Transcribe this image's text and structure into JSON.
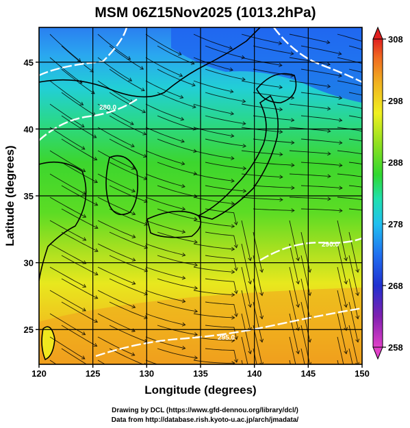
{
  "title": "MSM 06Z15Nov2025 (1013.2hPa)",
  "x_axis": {
    "label": "Longitude (degrees)",
    "ticks": [
      120,
      125,
      130,
      135,
      140,
      145,
      150
    ],
    "range": [
      120,
      150
    ]
  },
  "y_axis": {
    "label": "Latitude  (degrees)",
    "ticks": [
      25,
      30,
      35,
      40,
      45
    ],
    "range": [
      22.4,
      47.6
    ]
  },
  "colorbar": {
    "ticks": [
      258,
      268,
      278,
      288,
      298,
      308
    ],
    "range": [
      258,
      308
    ],
    "colors": [
      "#e040c8",
      "#8020b0",
      "#2030d0",
      "#2090f0",
      "#20d8e0",
      "#20e080",
      "#30d020",
      "#a0e020",
      "#f0f020",
      "#f0b020",
      "#f07020",
      "#e02020"
    ]
  },
  "contours": [
    {
      "label": "280.0"
    },
    {
      "label": "290.0"
    },
    {
      "label": "295.0"
    }
  ],
  "credits": {
    "line1": "Drawing by DCL (https://www.gfd-dennou.org/library/dcl/)",
    "line2": "Data from http://database.rish.kyoto-u.ac.jp/arch/jmadata/"
  }
}
